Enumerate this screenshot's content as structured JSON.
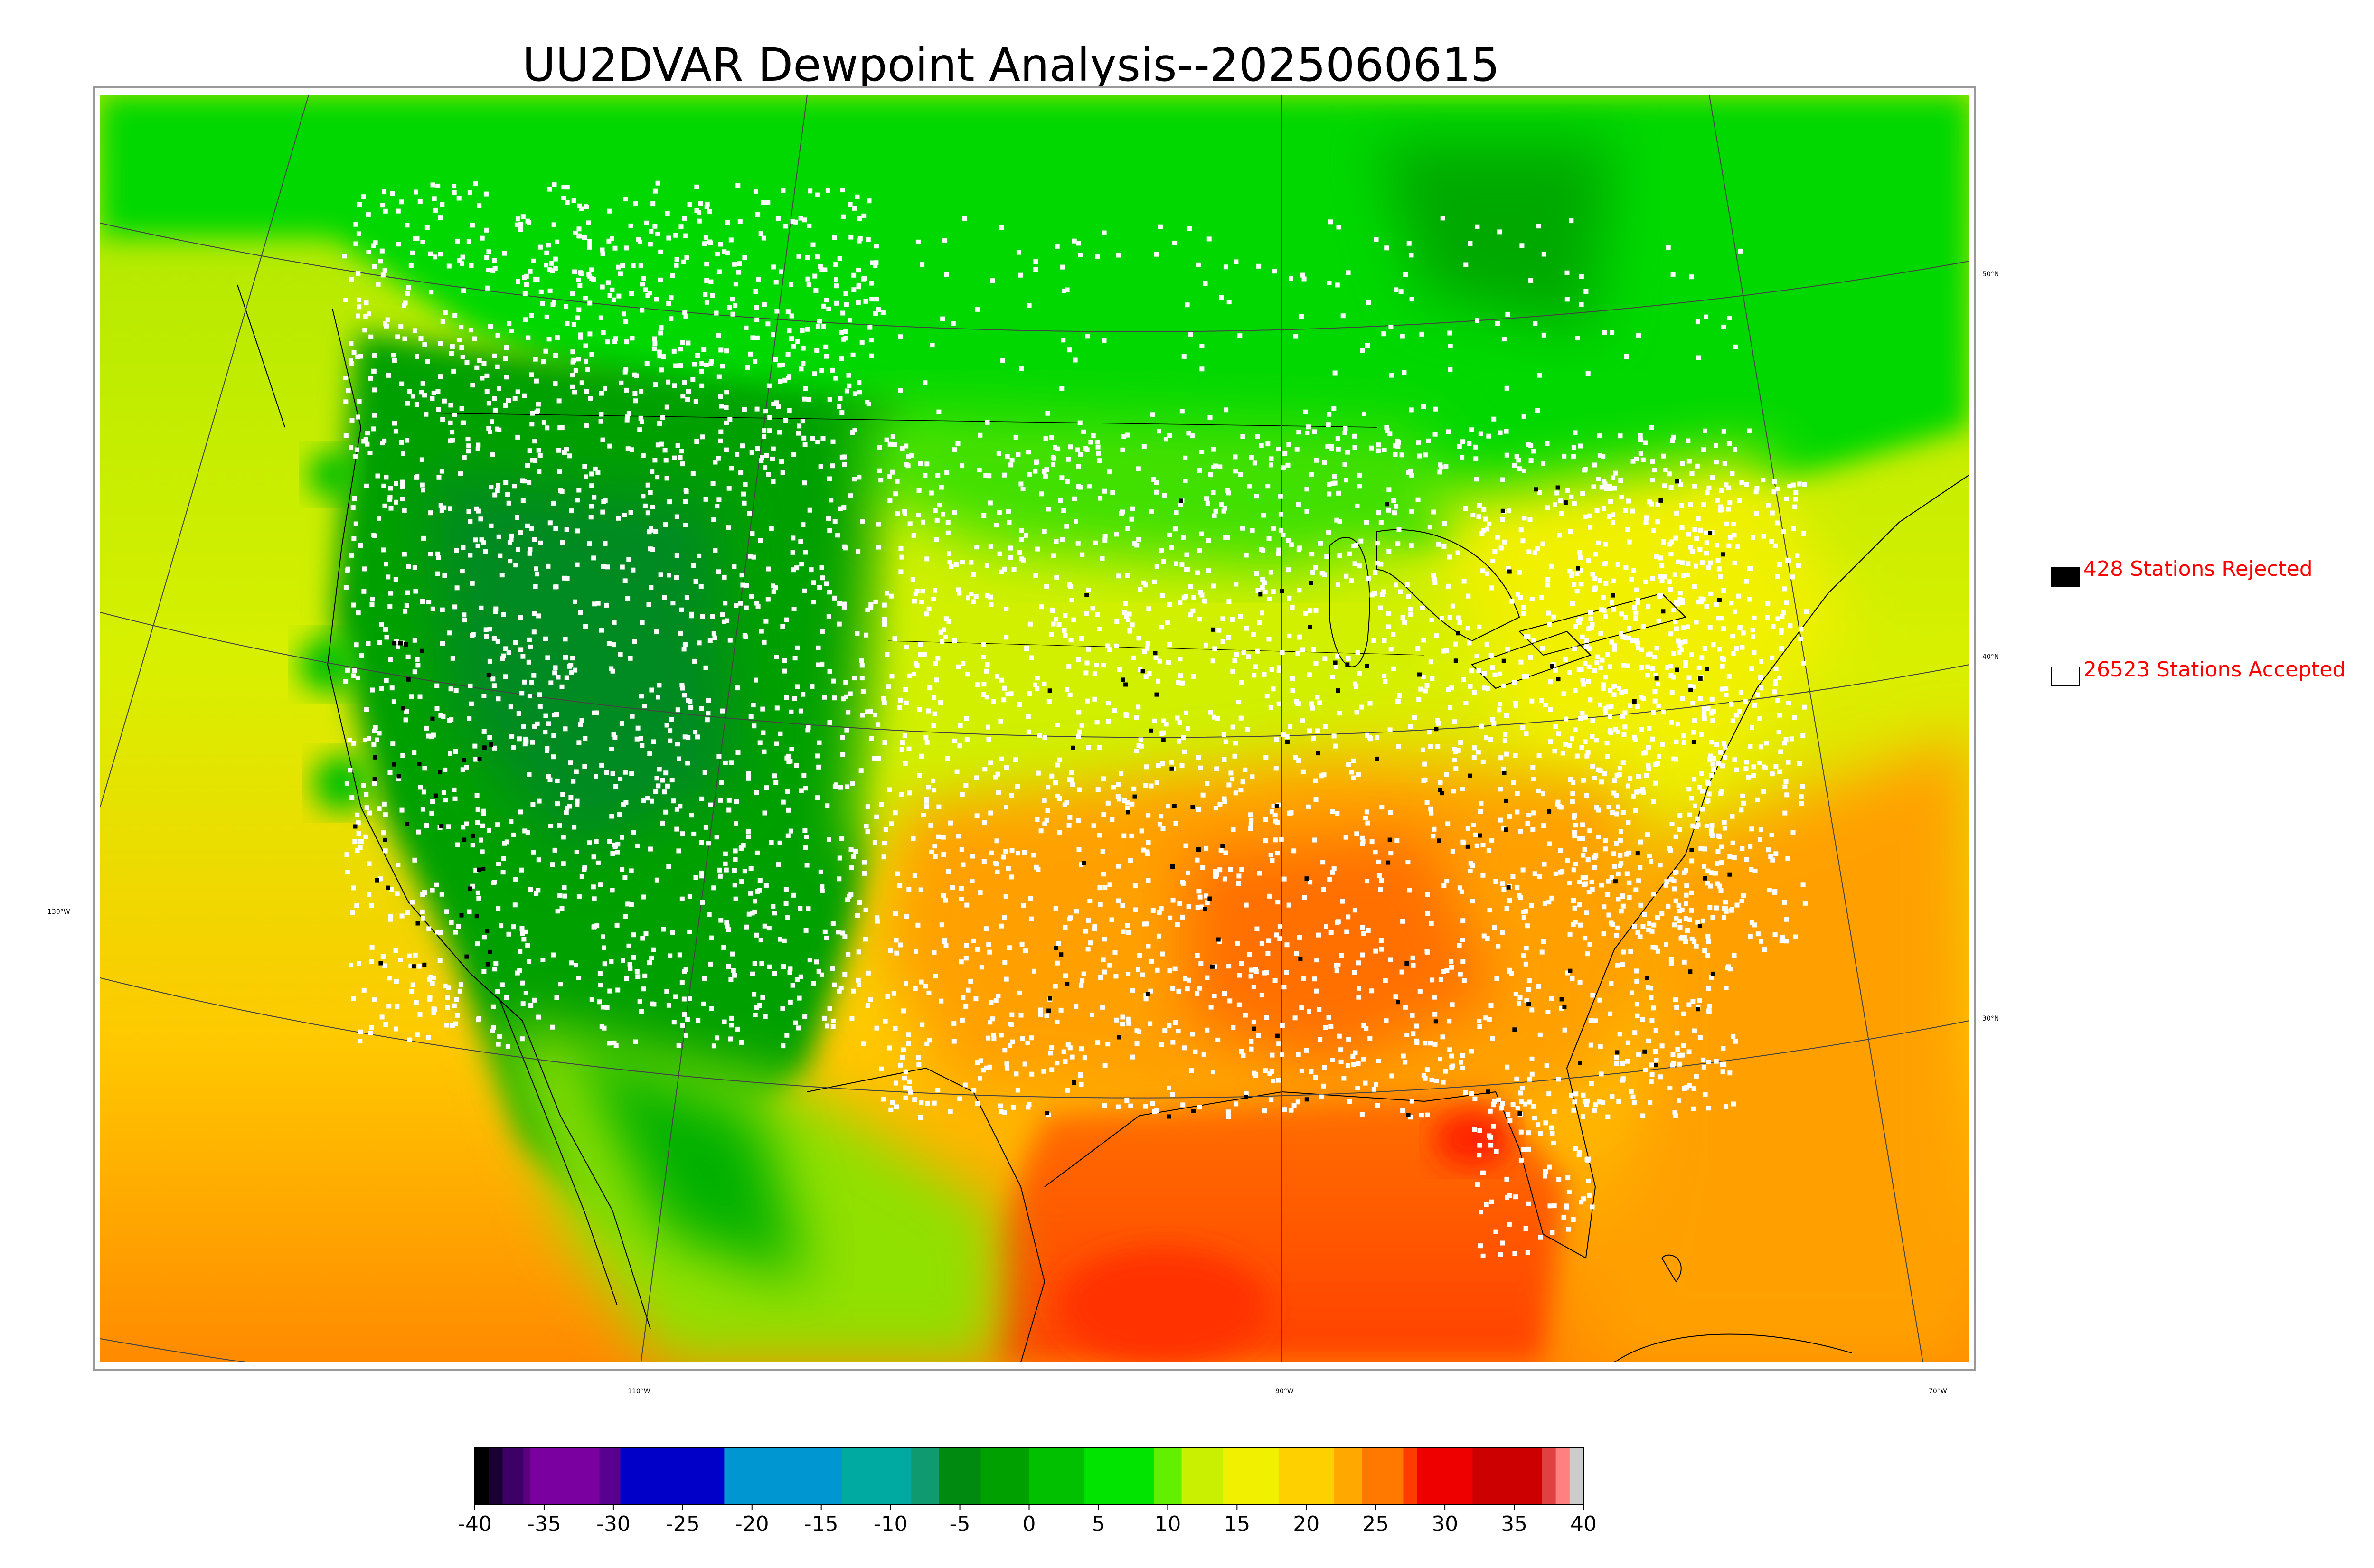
{
  "title": "UU2DVAR Dewpoint Analysis--2025060615",
  "legend": {
    "rejected": {
      "label": "428 Stations Rejected",
      "swatch": "black"
    },
    "accepted": {
      "label": "26523 Stations Accepted",
      "swatch": "white"
    },
    "label_color": "#ff0000"
  },
  "graticule": {
    "lat_labels": [
      "50°N",
      "40°N",
      "30°N"
    ],
    "lon_labels": [
      "130°W",
      "110°W",
      "90°W",
      "70°W"
    ]
  },
  "colorbar": {
    "ticks": [
      "-40",
      "-35",
      "-30",
      "-25",
      "-20",
      "-15",
      "-10",
      "-5",
      "0",
      "5",
      "10",
      "15",
      "20",
      "25",
      "30",
      "35",
      "40"
    ],
    "min": -40,
    "max": 40,
    "stops": [
      {
        "from": -40,
        "to": -39,
        "color": "#000000"
      },
      {
        "from": -39,
        "to": -38,
        "color": "#1a0033"
      },
      {
        "from": -38,
        "to": -36.5,
        "color": "#3d0066"
      },
      {
        "from": -36.5,
        "to": -36,
        "color": "#5c0080"
      },
      {
        "from": -36,
        "to": -31,
        "color": "#7a00a0"
      },
      {
        "from": -31,
        "to": -29.5,
        "color": "#5a0090"
      },
      {
        "from": -29.5,
        "to": -22,
        "color": "#0000c8"
      },
      {
        "from": -22,
        "to": -13.5,
        "color": "#0096d2"
      },
      {
        "from": -13.5,
        "to": -8.5,
        "color": "#00aaa0"
      },
      {
        "from": -8.5,
        "to": -6.5,
        "color": "#109a70"
      },
      {
        "from": -6.5,
        "to": -3.5,
        "color": "#008a10"
      },
      {
        "from": -3.5,
        "to": 0,
        "color": "#00a000"
      },
      {
        "from": 0,
        "to": 4,
        "color": "#00c000"
      },
      {
        "from": 4,
        "to": 9,
        "color": "#00e400"
      },
      {
        "from": 9,
        "to": 11,
        "color": "#60f000"
      },
      {
        "from": 11,
        "to": 14,
        "color": "#c8f000"
      },
      {
        "from": 14,
        "to": 18,
        "color": "#f0f000"
      },
      {
        "from": 18,
        "to": 22,
        "color": "#ffd000"
      },
      {
        "from": 22,
        "to": 24,
        "color": "#ffa800"
      },
      {
        "from": 24,
        "to": 27,
        "color": "#ff7800"
      },
      {
        "from": 27,
        "to": 28,
        "color": "#ff3c00"
      },
      {
        "from": 28,
        "to": 32,
        "color": "#ee0000"
      },
      {
        "from": 32,
        "to": 37,
        "color": "#cc0000"
      },
      {
        "from": 37,
        "to": 38,
        "color": "#e04040"
      },
      {
        "from": 38,
        "to": 39,
        "color": "#ff8080"
      },
      {
        "from": 39,
        "to": 40,
        "color": "#cccccc"
      }
    ]
  },
  "map_colors": {
    "ocean_north": "#c8f000",
    "ocean_gulf": "#ff8a00",
    "canada": "#00e000",
    "west_us": "#00a800",
    "plains": "#d8f000",
    "southeast": "#ff9a00",
    "gulf_hot": "#ff3a00"
  }
}
